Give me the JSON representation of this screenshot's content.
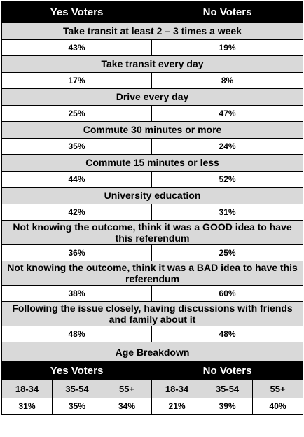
{
  "header": {
    "yes": "Yes Voters",
    "no": "No Voters"
  },
  "rows": [
    {
      "question": "Take transit at least 2 – 3 times a week",
      "yes": "43%",
      "no": "19%"
    },
    {
      "question": "Take transit every day",
      "yes": "17%",
      "no": "8%"
    },
    {
      "question": "Drive every day",
      "yes": "25%",
      "no": "47%"
    },
    {
      "question": "Commute 30 minutes or more",
      "yes": "35%",
      "no": "24%"
    },
    {
      "question": "Commute 15 minutes or less",
      "yes": "44%",
      "no": "52%"
    },
    {
      "question": "University education",
      "yes": "42%",
      "no": "31%"
    },
    {
      "question": "Not knowing the outcome, think it was a GOOD idea to have this referendum",
      "yes": "36%",
      "no": "25%"
    },
    {
      "question": "Not knowing the outcome, think it was a BAD idea to have this referendum",
      "yes": "38%",
      "no": "60%"
    },
    {
      "question": "Following the issue closely, having discussions with friends and family about it",
      "yes": "48%",
      "no": "48%"
    }
  ],
  "age": {
    "title": "Age Breakdown",
    "yes_label": "Yes Voters",
    "no_label": "No Voters",
    "brackets": [
      "18-34",
      "35-54",
      "55+",
      "18-34",
      "35-54",
      "55+"
    ],
    "values": [
      "31%",
      "35%",
      "34%",
      "21%",
      "39%",
      "40%"
    ]
  }
}
